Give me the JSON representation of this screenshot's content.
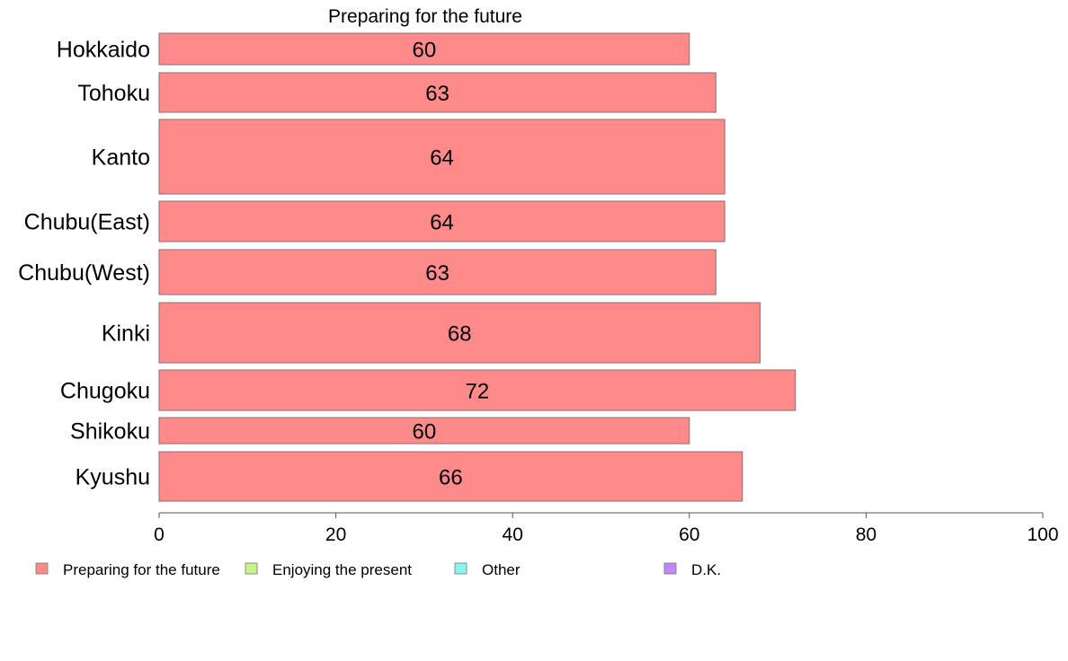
{
  "chart_data": {
    "type": "bar",
    "orientation": "horizontal",
    "title": "Preparing for the future",
    "categories": [
      "Hokkaido",
      "Tohoku",
      "Kanto",
      "Chubu(East)",
      "Chubu(West)",
      "Kinki",
      "Chugoku",
      "Shikoku",
      "Kyushu"
    ],
    "series": [
      {
        "name": "Preparing for the future",
        "color": "#ff8a8a",
        "values": [
          60,
          63,
          64,
          64,
          63,
          68,
          72,
          60,
          66
        ],
        "labels": [
          "60",
          "63",
          "64",
          "64",
          "63",
          "68",
          "72",
          "60",
          "66"
        ]
      }
    ],
    "xlim": [
      0,
      100
    ],
    "xticks": [
      "0",
      "20",
      "40",
      "60",
      "80",
      "100"
    ],
    "grid": false,
    "legend": {
      "placement": "bottom",
      "items": [
        {
          "label": "Preparing for the future",
          "color": "#ff8a8a"
        },
        {
          "label": "Enjoying the present",
          "color": "#c8f58a"
        },
        {
          "label": "Other",
          "color": "#8af5f0"
        },
        {
          "label": "D.K.",
          "color": "#c08af5"
        }
      ]
    }
  }
}
